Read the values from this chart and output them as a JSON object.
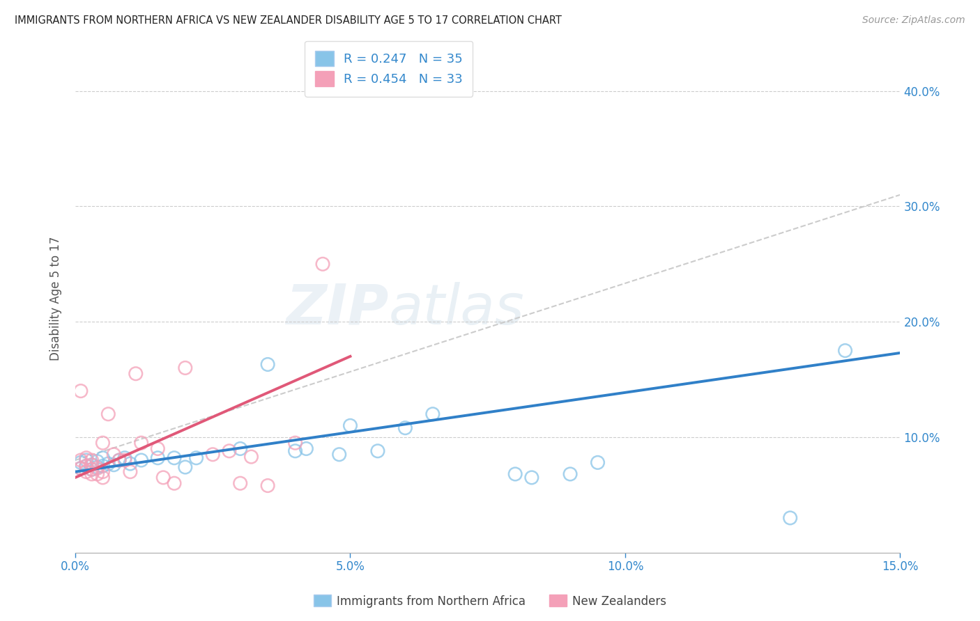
{
  "title": "IMMIGRANTS FROM NORTHERN AFRICA VS NEW ZEALANDER DISABILITY AGE 5 TO 17 CORRELATION CHART",
  "source": "Source: ZipAtlas.com",
  "ylabel": "Disability Age 5 to 17",
  "blue_R": 0.247,
  "blue_N": 35,
  "pink_R": 0.454,
  "pink_N": 33,
  "blue_label": "Immigrants from Northern Africa",
  "pink_label": "New Zealanders",
  "blue_color": "#88c4e8",
  "pink_color": "#f4a0b8",
  "blue_line_color": "#3080c8",
  "pink_line_color": "#e05878",
  "dash_line_color": "#cccccc",
  "xlim": [
    0.0,
    0.15
  ],
  "ylim": [
    0.0,
    0.44
  ],
  "xtick_labels": [
    "0.0%",
    "5.0%",
    "10.0%",
    "15.0%"
  ],
  "xtick_vals": [
    0.0,
    0.05,
    0.1,
    0.15
  ],
  "ytick_labels": [
    "10.0%",
    "20.0%",
    "30.0%",
    "40.0%"
  ],
  "ytick_vals": [
    0.1,
    0.2,
    0.3,
    0.4
  ],
  "blue_scatter_x": [
    0.001,
    0.001,
    0.002,
    0.002,
    0.003,
    0.003,
    0.004,
    0.004,
    0.005,
    0.005,
    0.006,
    0.007,
    0.008,
    0.009,
    0.01,
    0.012,
    0.015,
    0.018,
    0.02,
    0.022,
    0.03,
    0.035,
    0.04,
    0.042,
    0.048,
    0.05,
    0.055,
    0.06,
    0.065,
    0.08,
    0.083,
    0.09,
    0.095,
    0.13,
    0.14
  ],
  "blue_scatter_y": [
    0.073,
    0.078,
    0.075,
    0.08,
    0.072,
    0.076,
    0.074,
    0.079,
    0.075,
    0.082,
    0.077,
    0.076,
    0.08,
    0.082,
    0.077,
    0.08,
    0.082,
    0.082,
    0.074,
    0.082,
    0.09,
    0.163,
    0.088,
    0.09,
    0.085,
    0.11,
    0.088,
    0.108,
    0.12,
    0.068,
    0.065,
    0.068,
    0.078,
    0.03,
    0.175
  ],
  "pink_scatter_x": [
    0.001,
    0.001,
    0.001,
    0.002,
    0.002,
    0.002,
    0.003,
    0.003,
    0.003,
    0.003,
    0.004,
    0.004,
    0.005,
    0.005,
    0.005,
    0.006,
    0.007,
    0.008,
    0.009,
    0.01,
    0.011,
    0.012,
    0.015,
    0.016,
    0.018,
    0.02,
    0.025,
    0.028,
    0.03,
    0.032,
    0.035,
    0.04,
    0.045
  ],
  "pink_scatter_y": [
    0.073,
    0.08,
    0.14,
    0.07,
    0.075,
    0.082,
    0.068,
    0.072,
    0.076,
    0.08,
    0.068,
    0.073,
    0.065,
    0.07,
    0.095,
    0.12,
    0.085,
    0.08,
    0.08,
    0.07,
    0.155,
    0.095,
    0.09,
    0.065,
    0.06,
    0.16,
    0.085,
    0.088,
    0.06,
    0.083,
    0.058,
    0.095,
    0.25
  ],
  "blue_line_x0": 0.0,
  "blue_line_y0": 0.07,
  "blue_line_x1": 0.15,
  "blue_line_y1": 0.173,
  "pink_line_x0": 0.0,
  "pink_line_x1": 0.05,
  "pink_line_y0": 0.065,
  "pink_line_y1": 0.17,
  "dash_line_x0": 0.0,
  "dash_line_y0": 0.08,
  "dash_line_x1": 0.15,
  "dash_line_y1": 0.31
}
